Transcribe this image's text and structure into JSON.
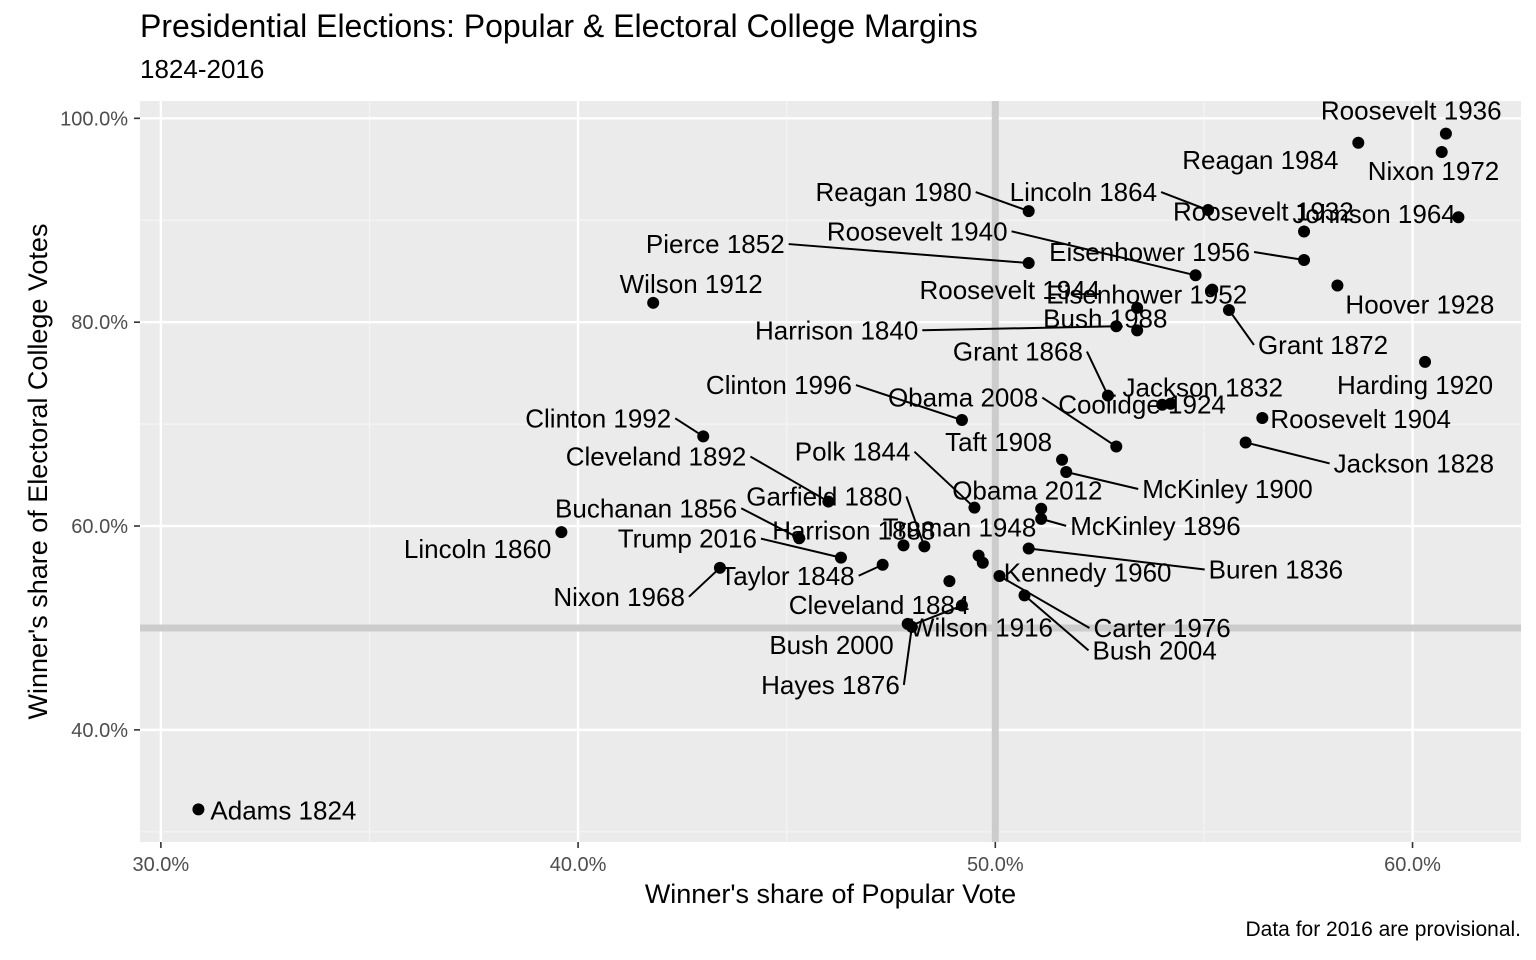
{
  "chart_data": {
    "type": "scatter",
    "title": "Presidential Elections: Popular & Electoral College Margins",
    "subtitle": "1824-2016",
    "caption": "Data for 2016 are provisional.",
    "xlabel": "Winner's share of Popular Vote",
    "ylabel": "Winner's share of Electoral College Votes",
    "xlim": [
      0.295,
      0.626
    ],
    "ylim": [
      0.29,
      1.017
    ],
    "x_ticks": [
      0.3,
      0.4,
      0.5,
      0.6
    ],
    "x_tick_labels": [
      "30.0%",
      "40.0%",
      "50.0%",
      "60.0%"
    ],
    "y_ticks": [
      0.4,
      0.6,
      0.8,
      1.0
    ],
    "y_tick_labels": [
      "40.0%",
      "60.0%",
      "80.0%",
      "100.0%"
    ],
    "reference_lines": {
      "x": 0.5,
      "y": 0.5
    },
    "grid": true,
    "colors": {
      "panel": "#ebebeb",
      "grid_major": "#ffffff",
      "grid_minor": "#f4f4f4",
      "reference_line": "#cccccc",
      "point": "#000000"
    },
    "points": [
      {
        "label": "Adams 1824",
        "x": 0.309,
        "y": 0.322
      },
      {
        "label": "Jackson 1828",
        "x": 0.56,
        "y": 0.682
      },
      {
        "label": "Jackson 1832",
        "x": 0.542,
        "y": 0.72
      },
      {
        "label": "Buren 1836",
        "x": 0.508,
        "y": 0.578
      },
      {
        "label": "Harrison 1840",
        "x": 0.529,
        "y": 0.796
      },
      {
        "label": "Polk 1844",
        "x": 0.495,
        "y": 0.618
      },
      {
        "label": "Taylor 1848",
        "x": 0.473,
        "y": 0.562
      },
      {
        "label": "Pierce 1852",
        "x": 0.508,
        "y": 0.858
      },
      {
        "label": "Buchanan 1856",
        "x": 0.453,
        "y": 0.588
      },
      {
        "label": "Lincoln 1860",
        "x": 0.396,
        "y": 0.594
      },
      {
        "label": "Lincoln 1864",
        "x": 0.551,
        "y": 0.91
      },
      {
        "label": "Grant 1868",
        "x": 0.527,
        "y": 0.728
      },
      {
        "label": "Grant 1872",
        "x": 0.556,
        "y": 0.812
      },
      {
        "label": "Hayes 1876",
        "x": 0.48,
        "y": 0.501
      },
      {
        "label": "Garfield 1880",
        "x": 0.483,
        "y": 0.58
      },
      {
        "label": "Cleveland 1884",
        "x": 0.489,
        "y": 0.546
      },
      {
        "label": "Harrison 1888",
        "x": 0.478,
        "y": 0.581
      },
      {
        "label": "Cleveland 1892",
        "x": 0.46,
        "y": 0.624
      },
      {
        "label": "McKinley 1896",
        "x": 0.511,
        "y": 0.607
      },
      {
        "label": "McKinley 1900",
        "x": 0.517,
        "y": 0.653
      },
      {
        "label": "Roosevelt 1904",
        "x": 0.564,
        "y": 0.706
      },
      {
        "label": "Taft 1908",
        "x": 0.516,
        "y": 0.665
      },
      {
        "label": "Wilson 1912",
        "x": 0.418,
        "y": 0.819
      },
      {
        "label": "Wilson 1916",
        "x": 0.492,
        "y": 0.522
      },
      {
        "label": "Harding 1920",
        "x": 0.603,
        "y": 0.761
      },
      {
        "label": "Coolidge 1924",
        "x": 0.54,
        "y": 0.719
      },
      {
        "label": "Hoover 1928",
        "x": 0.582,
        "y": 0.836
      },
      {
        "label": "Roosevelt 1932",
        "x": 0.574,
        "y": 0.889
      },
      {
        "label": "Roosevelt 1936",
        "x": 0.608,
        "y": 0.985
      },
      {
        "label": "Roosevelt 1940",
        "x": 0.548,
        "y": 0.846
      },
      {
        "label": "Roosevelt 1944",
        "x": 0.534,
        "y": 0.814
      },
      {
        "label": "Truman 1948",
        "x": 0.496,
        "y": 0.571
      },
      {
        "label": "Eisenhower 1952",
        "x": 0.552,
        "y": 0.832
      },
      {
        "label": "Eisenhower 1956",
        "x": 0.574,
        "y": 0.861
      },
      {
        "label": "Kennedy 1960",
        "x": 0.497,
        "y": 0.564
      },
      {
        "label": "Johnson 1964",
        "x": 0.611,
        "y": 0.903
      },
      {
        "label": "Nixon 1968",
        "x": 0.434,
        "y": 0.559
      },
      {
        "label": "Nixon 1972",
        "x": 0.607,
        "y": 0.967
      },
      {
        "label": "Carter 1976",
        "x": 0.501,
        "y": 0.551
      },
      {
        "label": "Reagan 1980",
        "x": 0.508,
        "y": 0.909
      },
      {
        "label": "Reagan 1984",
        "x": 0.587,
        "y": 0.976
      },
      {
        "label": "Bush 1988",
        "x": 0.534,
        "y": 0.792
      },
      {
        "label": "Clinton 1992",
        "x": 0.43,
        "y": 0.688
      },
      {
        "label": "Clinton 1996",
        "x": 0.492,
        "y": 0.704
      },
      {
        "label": "Bush 2000",
        "x": 0.479,
        "y": 0.504
      },
      {
        "label": "Bush 2004",
        "x": 0.507,
        "y": 0.532
      },
      {
        "label": "Obama 2008",
        "x": 0.529,
        "y": 0.678
      },
      {
        "label": "Obama 2012",
        "x": 0.511,
        "y": 0.617
      },
      {
        "label": "Trump 2016",
        "x": 0.463,
        "y": 0.569
      }
    ]
  }
}
